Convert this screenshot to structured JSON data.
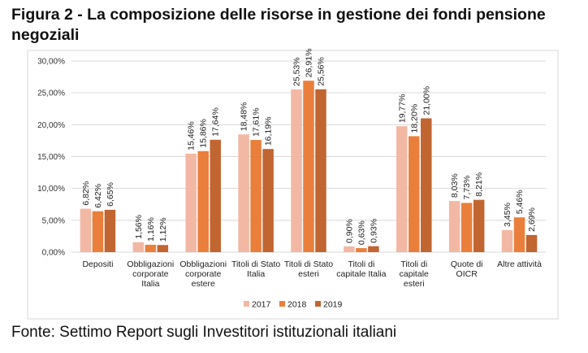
{
  "chart_data": {
    "type": "bar",
    "title": "Figura 2 - La composizione delle risorse in gestione dei fondi pensione negoziali",
    "source": "Fonte: Settimo Report sugli Investitori istituzionali italiani",
    "xlabel": "",
    "ylabel": "",
    "ylim": [
      0,
      30
    ],
    "yticks": [
      "0,00%",
      "5,00%",
      "10,00%",
      "15,00%",
      "20,00%",
      "25,00%",
      "30,00%"
    ],
    "grid": true,
    "legend_position": "bottom",
    "categories": [
      [
        "Depositi"
      ],
      [
        "Obbligazioni",
        "corporate",
        "Italia"
      ],
      [
        "Obbligazioni",
        "corporate",
        "estere"
      ],
      [
        "Titoli di Stato",
        "Italia"
      ],
      [
        "Titoli di Stato",
        "esteri"
      ],
      [
        "Titoli di",
        "capitale Italia"
      ],
      [
        "Titoli di",
        "capitale",
        "esteri"
      ],
      [
        "Quote di",
        "OICR"
      ],
      [
        "Altre attività"
      ]
    ],
    "series": [
      {
        "name": "2017",
        "color": "#F2B8A4",
        "values": [
          6.82,
          1.56,
          15.46,
          18.48,
          25.53,
          0.9,
          19.77,
          8.03,
          3.45
        ],
        "labels": [
          "6,82%",
          "1,56%",
          "15,46%",
          "18,48%",
          "25,53%",
          "0,90%",
          "19,77%",
          "8,03%",
          "3,45%"
        ]
      },
      {
        "name": "2018",
        "color": "#EA7F3C",
        "values": [
          6.42,
          1.16,
          15.86,
          17.61,
          26.91,
          0.63,
          18.2,
          7.73,
          5.46
        ],
        "labels": [
          "6,42%",
          "1,16%",
          "15,86%",
          "17,61%",
          "26,91%",
          "0,63%",
          "18,20%",
          "7,73%",
          "5,46%"
        ]
      },
      {
        "name": "2019",
        "color": "#C16531",
        "values": [
          6.65,
          1.12,
          17.64,
          16.19,
          25.56,
          0.93,
          21.0,
          8.21,
          2.69
        ],
        "labels": [
          "6,65%",
          "1,12%",
          "17,64%",
          "16,19%",
          "25,56%",
          "0,93%",
          "21,00%",
          "8,21%",
          "2,69%"
        ]
      }
    ]
  }
}
